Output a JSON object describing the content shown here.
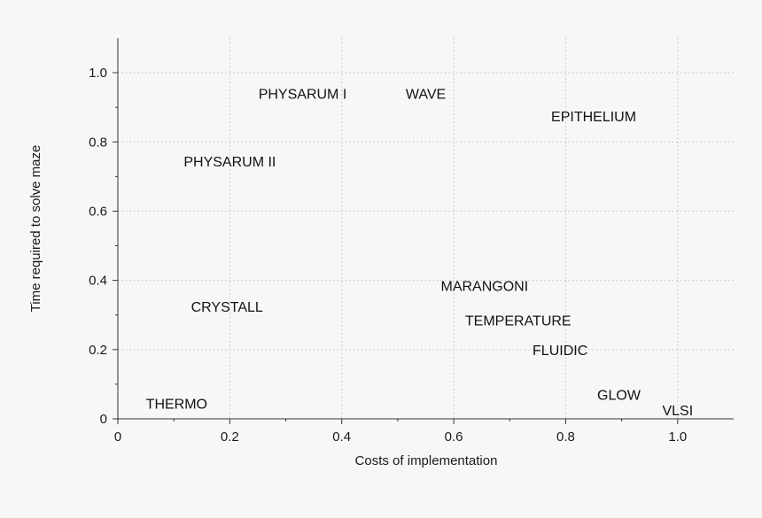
{
  "chart_data": {
    "type": "scatter",
    "title": "",
    "xlabel": "Costs of implementation",
    "ylabel": "Time required to solve maze",
    "xlim": [
      0,
      1.1
    ],
    "ylim": [
      0,
      1.1
    ],
    "xticks": [
      0,
      0.2,
      0.4,
      0.6,
      0.8,
      1.0
    ],
    "xtick_labels": [
      "0",
      "0.2",
      "0.4",
      "0.6",
      "0.8",
      "1.0"
    ],
    "yticks": [
      0,
      0.2,
      0.4,
      0.6,
      0.8,
      1.0
    ],
    "ytick_labels": [
      "0",
      "0.2",
      "0.4",
      "0.6",
      "0.8",
      "1.0"
    ],
    "grid": true,
    "points": [
      {
        "label": "PHYSARUM I",
        "x": 0.33,
        "y": 0.94
      },
      {
        "label": "WAVE",
        "x": 0.55,
        "y": 0.94
      },
      {
        "label": "EPITHELIUM",
        "x": 0.85,
        "y": 0.875
      },
      {
        "label": "PHYSARUM II",
        "x": 0.2,
        "y": 0.745
      },
      {
        "label": "MARANGONI",
        "x": 0.655,
        "y": 0.385
      },
      {
        "label": "CRYSTALL",
        "x": 0.195,
        "y": 0.325
      },
      {
        "label": "TEMPERATURE",
        "x": 0.715,
        "y": 0.285
      },
      {
        "label": "FLUIDIC",
        "x": 0.79,
        "y": 0.2
      },
      {
        "label": "THERMO",
        "x": 0.105,
        "y": 0.045
      },
      {
        "label": "GLOW",
        "x": 0.895,
        "y": 0.07
      },
      {
        "label": "VLSI",
        "x": 1.0,
        "y": 0.025
      }
    ]
  }
}
